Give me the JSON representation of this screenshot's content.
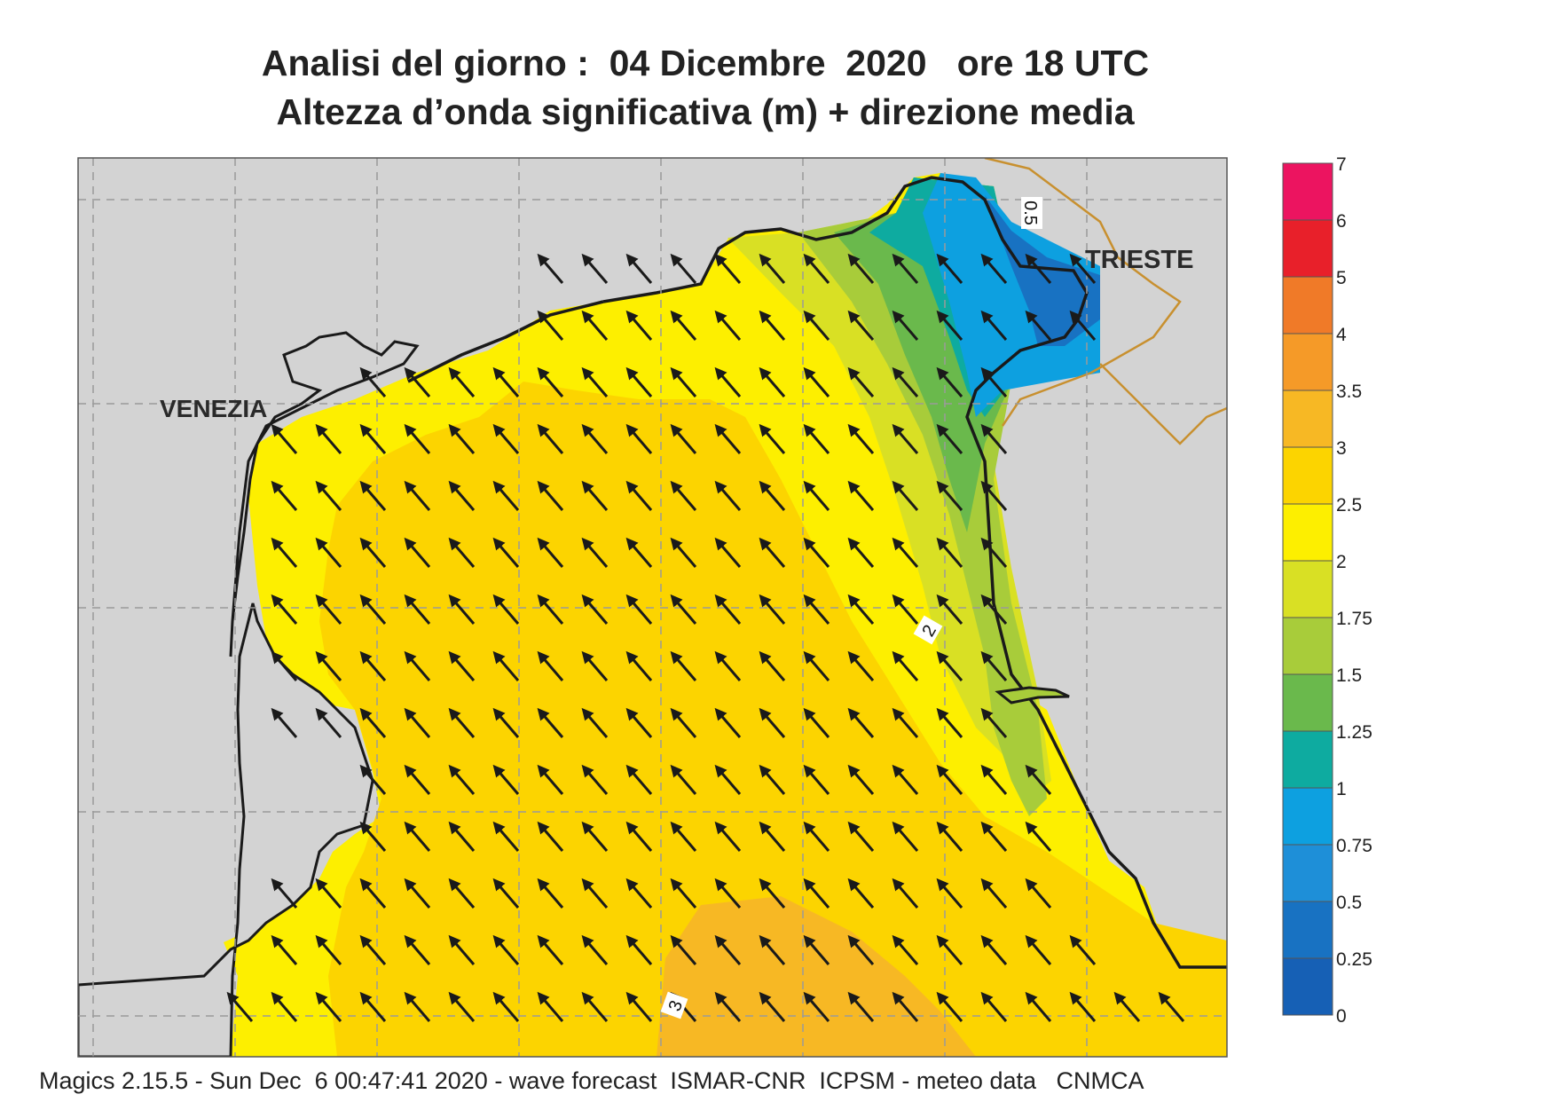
{
  "title": {
    "line1": "Analisi del giorno :  04 Dicembre  2020   ore 18 UTC",
    "line2": "Altezza d’onda significativa (m) + direzione media"
  },
  "map": {
    "cities": [
      {
        "name": "VENEZIA"
      },
      {
        "name": "TRIESTE"
      }
    ],
    "contour_labels": [
      "0.5",
      "2",
      "3"
    ],
    "colors": {
      "land": "#d3d3d3",
      "coast": "#1a1a1a",
      "border": "#c8902f",
      "arrow": "#1a1a1a"
    }
  },
  "legend": {
    "labels": [
      "7",
      "6",
      "5",
      "4",
      "3.5",
      "3",
      "2.5",
      "2",
      "1.75",
      "1.5",
      "1.25",
      "1",
      "0.75",
      "0.5",
      "0.25",
      "0"
    ],
    "colors": [
      "#ec1460",
      "#e8202a",
      "#f07a28",
      "#f59a28",
      "#f7b824",
      "#fcd400",
      "#fdef00",
      "#d9e024",
      "#a8cc3a",
      "#6ab94c",
      "#0eaba0",
      "#0da0e0",
      "#1e8fd8",
      "#1872c2",
      "#1660b5"
    ]
  },
  "footer": "Magics 2.15.5 - Sun Dec  6 00:47:41 2020 - wave forecast  ISMAR-CNR  ICPSM - meteo data   CNMCA"
}
